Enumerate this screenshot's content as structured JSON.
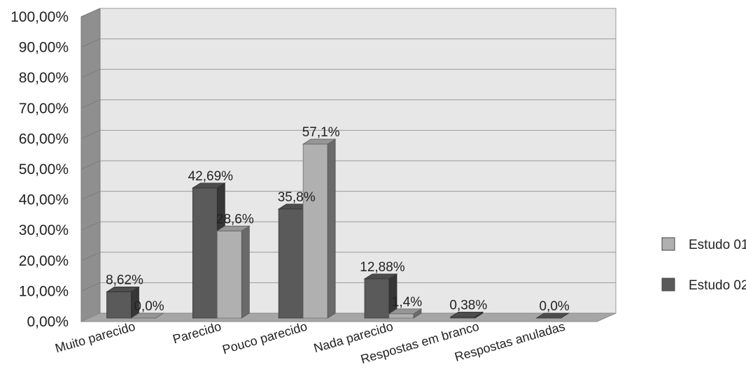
{
  "chart_data": {
    "type": "bar",
    "title": "",
    "xlabel": "",
    "ylabel": "",
    "ylim": [
      0,
      100
    ],
    "grid": true,
    "legend_position": "right",
    "categories": [
      "Muito parecido",
      "Parecido",
      "Pouco parecido",
      "Nada parecido",
      "Respostas em branco",
      "Respostas anuladas"
    ],
    "y_ticks": [
      "0,00%",
      "10,00%",
      "20,00%",
      "30,00%",
      "40,00%",
      "50,00%",
      "60,00%",
      "70,00%",
      "80,00%",
      "90,00%",
      "100,00%"
    ],
    "series": [
      {
        "name": "Estudo 02",
        "color": "#5a5a5a",
        "values": [
          8.62,
          42.69,
          35.8,
          12.88,
          0.38,
          0.0
        ],
        "labels": [
          "8,62%",
          "42,69%",
          "35,8%",
          "12,88%",
          "0,38%",
          "0,0%"
        ]
      },
      {
        "name": "Estudo 01",
        "color": "#b0b0b0",
        "values": [
          0.0,
          28.6,
          57.1,
          1.4,
          null,
          null
        ],
        "labels": [
          "0,0%",
          "28,6%",
          "57,1%",
          "1,4%",
          "",
          ""
        ]
      }
    ],
    "legend": [
      {
        "name": "Estudo 01",
        "color": "#b0b0b0"
      },
      {
        "name": "Estudo 02",
        "color": "#5a5a5a"
      }
    ]
  }
}
